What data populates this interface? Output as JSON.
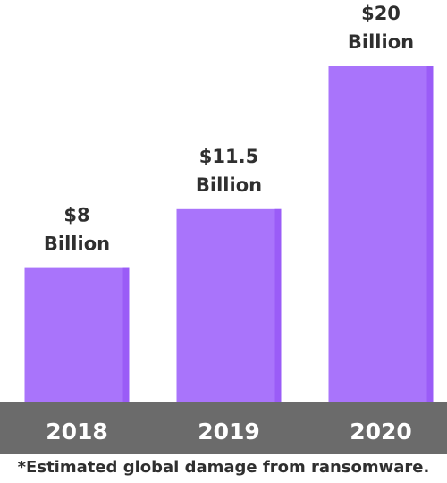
{
  "chart_data": {
    "type": "bar",
    "categories": [
      "2018",
      "2019",
      "2020"
    ],
    "values": [
      8,
      11.5,
      20
    ],
    "value_labels": [
      [
        "$8",
        "Billion"
      ],
      [
        "$11.5",
        "Billion"
      ],
      [
        "$20",
        "Billion"
      ]
    ],
    "title": "",
    "xlabel": "",
    "ylabel": "",
    "ylim": [
      0,
      20
    ],
    "grid": false,
    "colors": {
      "bar": "#a974fb",
      "bar_edge": "#9a5cf7",
      "axis_band": "#6b6b6b",
      "text": "#2f2f2f",
      "tick_text": "#ffffff"
    }
  },
  "footnote": "*Estimated global damage from ransomware."
}
